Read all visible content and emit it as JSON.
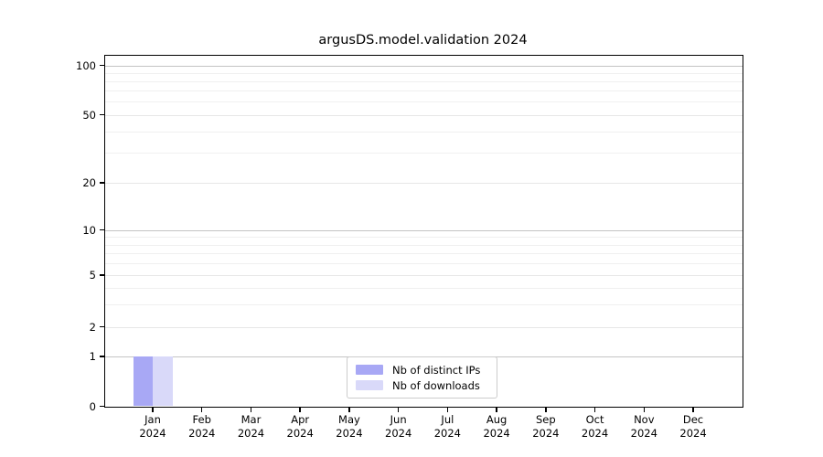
{
  "chart_data": {
    "type": "bar",
    "title": "argusDS.model.validation 2024",
    "xlabel": "",
    "ylabel": "",
    "y_scale": "symlog",
    "grid": true,
    "legend_position": "lower center",
    "ylim": [
      0,
      120
    ],
    "yticks": [
      0,
      1,
      2,
      5,
      10,
      20,
      50,
      100
    ],
    "decade_ticks": [
      1,
      10,
      100
    ],
    "minor_gridlines": [
      3,
      4,
      6,
      7,
      8,
      9,
      30,
      40,
      60,
      70,
      80,
      90
    ],
    "categories": [
      {
        "month": "Jan",
        "year": "2024"
      },
      {
        "month": "Feb",
        "year": "2024"
      },
      {
        "month": "Mar",
        "year": "2024"
      },
      {
        "month": "Apr",
        "year": "2024"
      },
      {
        "month": "May",
        "year": "2024"
      },
      {
        "month": "Jun",
        "year": "2024"
      },
      {
        "month": "Jul",
        "year": "2024"
      },
      {
        "month": "Aug",
        "year": "2024"
      },
      {
        "month": "Sep",
        "year": "2024"
      },
      {
        "month": "Oct",
        "year": "2024"
      },
      {
        "month": "Nov",
        "year": "2024"
      },
      {
        "month": "Dec",
        "year": "2024"
      }
    ],
    "series": [
      {
        "name": "Nb of distinct IPs",
        "color": "#a8a8f5",
        "values": [
          1,
          0,
          0,
          0,
          0,
          0,
          0,
          0,
          0,
          0,
          0,
          0
        ]
      },
      {
        "name": "Nb of downloads",
        "color": "#d9d9f9",
        "values": [
          1,
          0,
          0,
          0,
          0,
          0,
          0,
          0,
          0,
          0,
          0,
          0
        ]
      }
    ]
  }
}
